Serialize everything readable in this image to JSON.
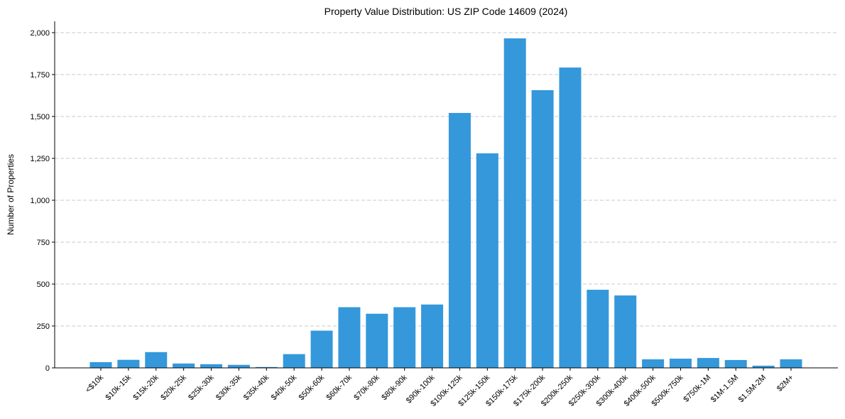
{
  "chart_data": {
    "type": "bar",
    "title": "Property Value Distribution: US ZIP Code 14609 (2024)",
    "xlabel": "",
    "ylabel": "Number of Properties",
    "ylim": [
      0,
      2062
    ],
    "yticks": [
      0,
      250,
      500,
      750,
      1000,
      1250,
      1500,
      1750,
      2000
    ],
    "ytick_labels": [
      "0",
      "250",
      "500",
      "750",
      "1,000",
      "1,250",
      "1,500",
      "1,750",
      "2,000"
    ],
    "grid": "y dashed",
    "bar_color": "#3498db",
    "categories": [
      "<$10k",
      "$10k-15k",
      "$15k-20k",
      "$20k-25k",
      "$25k-30k",
      "$30k-35k",
      "$35k-40k",
      "$40k-50k",
      "$50k-60k",
      "$60k-70k",
      "$70k-80k",
      "$80k-90k",
      "$90k-100k",
      "$100k-125k",
      "$125k-150k",
      "$150k-175k",
      "$175k-200k",
      "$200k-250k",
      "$250k-300k",
      "$300k-400k",
      "$400k-500k",
      "$500k-750k",
      "$750k-1M",
      "$1M-1.5M",
      "$1.5M-2M",
      "$2M+"
    ],
    "values": [
      34,
      48,
      94,
      26,
      22,
      18,
      5,
      82,
      222,
      362,
      323,
      362,
      378,
      1521,
      1280,
      1966,
      1657,
      1792,
      466,
      432,
      51,
      55,
      59,
      47,
      13,
      51
    ]
  }
}
